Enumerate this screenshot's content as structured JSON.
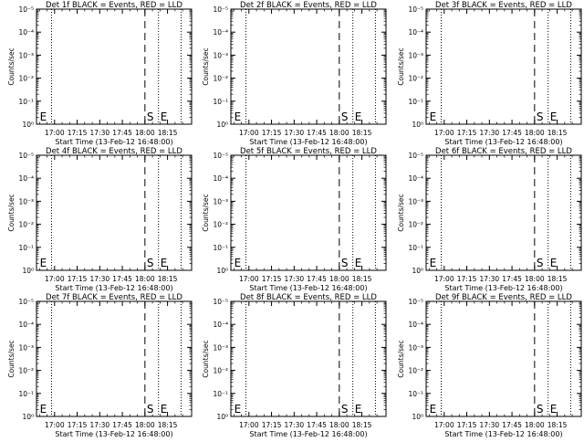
{
  "chart_data": [
    {
      "type": "line",
      "title": "Det 1f BLACK = Events, RED = LLD",
      "xlabel": "Start Time (13-Feb-12 16:48:00)",
      "ylabel": "Counts/sec",
      "x_ticks": [
        "17:00",
        "17:15",
        "17:30",
        "17:45",
        "18:00",
        "18:15"
      ],
      "y_ticks": [
        "10⁰",
        "10⁻¹",
        "10⁻²",
        "10⁻³",
        "10⁻⁴",
        "10⁻⁵"
      ],
      "y_scale": "log",
      "markers": [
        {
          "label": "E",
          "time": "16:49"
        },
        {
          "label": "S",
          "time": "18:00"
        },
        {
          "label": "E",
          "time": "18:09"
        }
      ],
      "dotted_times": [
        "16:58",
        "18:09",
        "18:24"
      ],
      "series": []
    },
    {
      "type": "line",
      "title": "Det 2f BLACK = Events, RED = LLD",
      "xlabel": "Start Time (13-Feb-12 16:48:00)",
      "ylabel": "Counts/sec",
      "x_ticks": [
        "17:00",
        "17:15",
        "17:30",
        "17:45",
        "18:00",
        "18:15"
      ],
      "y_ticks": [
        "10⁰",
        "10⁻¹",
        "10⁻²",
        "10⁻³",
        "10⁻⁴",
        "10⁻⁵"
      ],
      "y_scale": "log",
      "markers": [
        {
          "label": "E",
          "time": "16:49"
        },
        {
          "label": "S",
          "time": "18:00"
        },
        {
          "label": "E",
          "time": "18:09"
        }
      ],
      "dotted_times": [
        "16:58",
        "18:09",
        "18:24"
      ],
      "series": []
    },
    {
      "type": "line",
      "title": "Det 3f BLACK = Events, RED = LLD",
      "xlabel": "Start Time (13-Feb-12 16:48:00)",
      "ylabel": "Counts/sec",
      "x_ticks": [
        "17:00",
        "17:15",
        "17:30",
        "17:45",
        "18:00",
        "18:15"
      ],
      "y_ticks": [
        "10⁰",
        "10⁻¹",
        "10⁻²",
        "10⁻³",
        "10⁻⁴",
        "10⁻⁵"
      ],
      "y_scale": "log",
      "markers": [
        {
          "label": "E",
          "time": "16:49"
        },
        {
          "label": "S",
          "time": "18:00"
        },
        {
          "label": "E",
          "time": "18:09"
        }
      ],
      "dotted_times": [
        "16:58",
        "18:09",
        "18:24"
      ],
      "series": []
    },
    {
      "type": "line",
      "title": "Det 4f BLACK = Events, RED = LLD",
      "xlabel": "Start Time (13-Feb-12 16:48:00)",
      "ylabel": "Counts/sec",
      "x_ticks": [
        "17:00",
        "17:15",
        "17:30",
        "17:45",
        "18:00",
        "18:15"
      ],
      "y_ticks": [
        "10⁰",
        "10⁻¹",
        "10⁻²",
        "10⁻³",
        "10⁻⁴",
        "10⁻⁵"
      ],
      "y_scale": "log",
      "markers": [
        {
          "label": "E",
          "time": "16:49"
        },
        {
          "label": "S",
          "time": "18:00"
        },
        {
          "label": "E",
          "time": "18:09"
        }
      ],
      "dotted_times": [
        "16:58",
        "18:09",
        "18:24"
      ],
      "series": []
    },
    {
      "type": "line",
      "title": "Det 5f BLACK = Events, RED = LLD",
      "xlabel": "Start Time (13-Feb-12 16:48:00)",
      "ylabel": "Counts/sec",
      "x_ticks": [
        "17:00",
        "17:15",
        "17:30",
        "17:45",
        "18:00",
        "18:15"
      ],
      "y_ticks": [
        "10⁰",
        "10⁻¹",
        "10⁻²",
        "10⁻³",
        "10⁻⁴",
        "10⁻⁵"
      ],
      "y_scale": "log",
      "markers": [
        {
          "label": "E",
          "time": "16:49"
        },
        {
          "label": "S",
          "time": "18:00"
        },
        {
          "label": "E",
          "time": "18:09"
        }
      ],
      "dotted_times": [
        "16:58",
        "18:09",
        "18:24"
      ],
      "series": []
    },
    {
      "type": "line",
      "title": "Det 6f BLACK = Events, RED = LLD",
      "xlabel": "Start Time (13-Feb-12 16:48:00)",
      "ylabel": "Counts/sec",
      "x_ticks": [
        "17:00",
        "17:15",
        "17:30",
        "17:45",
        "18:00",
        "18:15"
      ],
      "y_ticks": [
        "10⁰",
        "10⁻¹",
        "10⁻²",
        "10⁻³",
        "10⁻⁴",
        "10⁻⁵"
      ],
      "y_scale": "log",
      "markers": [
        {
          "label": "E",
          "time": "16:49"
        },
        {
          "label": "S",
          "time": "18:00"
        },
        {
          "label": "E",
          "time": "18:09"
        }
      ],
      "dotted_times": [
        "16:58",
        "18:09",
        "18:24"
      ],
      "series": []
    },
    {
      "type": "line",
      "title": "Det 7f BLACK = Events, RED = LLD",
      "xlabel": "Start Time (13-Feb-12 16:48:00)",
      "ylabel": "Counts/sec",
      "x_ticks": [
        "17:00",
        "17:15",
        "17:30",
        "17:45",
        "18:00",
        "18:15"
      ],
      "y_ticks": [
        "10⁰",
        "10⁻¹",
        "10⁻²",
        "10⁻³",
        "10⁻⁴",
        "10⁻⁵"
      ],
      "y_scale": "log",
      "markers": [
        {
          "label": "E",
          "time": "16:49"
        },
        {
          "label": "S",
          "time": "18:00"
        },
        {
          "label": "E",
          "time": "18:09"
        }
      ],
      "dotted_times": [
        "16:58",
        "18:09",
        "18:24"
      ],
      "series": []
    },
    {
      "type": "line",
      "title": "Det 8f BLACK = Events, RED = LLD",
      "xlabel": "Start Time (13-Feb-12 16:48:00)",
      "ylabel": "Counts/sec",
      "x_ticks": [
        "17:00",
        "17:15",
        "17:30",
        "17:45",
        "18:00",
        "18:15"
      ],
      "y_ticks": [
        "10⁰",
        "10⁻¹",
        "10⁻²",
        "10⁻³",
        "10⁻⁴",
        "10⁻⁵"
      ],
      "y_scale": "log",
      "markers": [
        {
          "label": "E",
          "time": "16:49"
        },
        {
          "label": "S",
          "time": "18:00"
        },
        {
          "label": "E",
          "time": "18:09"
        }
      ],
      "dotted_times": [
        "16:58",
        "18:09",
        "18:24"
      ],
      "series": []
    },
    {
      "type": "line",
      "title": "Det 9f BLACK = Events, RED = LLD",
      "xlabel": "Start Time (13-Feb-12 16:48:00)",
      "ylabel": "Counts/sec",
      "x_ticks": [
        "17:00",
        "17:15",
        "17:30",
        "17:45",
        "18:00",
        "18:15"
      ],
      "y_ticks": [
        "10⁰",
        "10⁻¹",
        "10⁻²",
        "10⁻³",
        "10⁻⁴",
        "10⁻⁵"
      ],
      "y_scale": "log",
      "markers": [
        {
          "label": "E",
          "time": "16:49"
        },
        {
          "label": "S",
          "time": "18:00"
        },
        {
          "label": "E",
          "time": "18:09"
        }
      ],
      "dotted_times": [
        "16:58",
        "18:09",
        "18:24"
      ],
      "series": []
    }
  ],
  "colors": {
    "background": "#ffffff",
    "axes": "#000000",
    "events": "#000000",
    "lld": "#ff0000"
  }
}
